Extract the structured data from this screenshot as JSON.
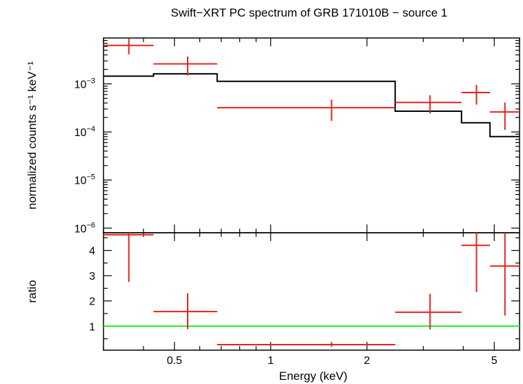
{
  "chart_data": {
    "title": "Swift−XRT PC spectrum of GRB 171010B − source 1",
    "xlabel": "Energy (keV)",
    "x_scale": "log",
    "xlim": [
      0.3,
      6.0
    ],
    "x_ticks": [
      {
        "value": 0.5,
        "label": "0.5"
      },
      {
        "value": 1,
        "label": "1"
      },
      {
        "value": 2,
        "label": "2"
      },
      {
        "value": 5,
        "label": "5"
      }
    ],
    "panels": [
      {
        "name": "spectrum",
        "type": "scatter",
        "ylabel": "normalized counts s⁻¹ keV⁻¹",
        "y_scale": "log",
        "ylim": [
          8e-07,
          0.009
        ],
        "y_ticks": [
          {
            "value": 0.001,
            "base": "10",
            "exp": "−3"
          },
          {
            "value": 0.0001,
            "base": "10",
            "exp": "−4"
          },
          {
            "value": 1e-05,
            "base": "10",
            "exp": "−5"
          },
          {
            "value": 1e-06,
            "base": "10",
            "exp": "−6"
          }
        ],
        "data": {
          "color": "#e8201c",
          "points": [
            {
              "x": 0.36,
              "xlo": 0.3,
              "xhi": 0.43,
              "y": 0.0063,
              "ylo": 0.0041,
              "yhi": 0.0087
            },
            {
              "x": 0.55,
              "xlo": 0.43,
              "xhi": 0.68,
              "y": 0.0026,
              "ylo": 0.0015,
              "yhi": 0.0037
            },
            {
              "x": 1.55,
              "xlo": 0.68,
              "xhi": 2.45,
              "y": 0.00032,
              "ylo": 0.00017,
              "yhi": 0.00047
            },
            {
              "x": 3.15,
              "xlo": 2.45,
              "xhi": 3.95,
              "y": 0.00041,
              "ylo": 0.00024,
              "yhi": 0.00058
            },
            {
              "x": 4.4,
              "xlo": 3.95,
              "xhi": 4.85,
              "y": 0.00066,
              "ylo": 0.00037,
              "yhi": 0.00095
            },
            {
              "x": 5.4,
              "xlo": 4.85,
              "xhi": 6.0,
              "y": 0.00026,
              "ylo": 0.00011,
              "yhi": 0.00041
            }
          ]
        },
        "model": {
          "color": "#000000",
          "steps": [
            {
              "xlo": 0.3,
              "xhi": 0.43,
              "y": 0.00145
            },
            {
              "xlo": 0.43,
              "xhi": 0.68,
              "y": 0.00162
            },
            {
              "xlo": 0.68,
              "xhi": 2.45,
              "y": 0.00113
            },
            {
              "xlo": 2.45,
              "xhi": 3.95,
              "y": 0.00027
            },
            {
              "xlo": 3.95,
              "xhi": 4.85,
              "y": 0.000155
            },
            {
              "xlo": 4.85,
              "xhi": 6.0,
              "y": 8e-05
            }
          ]
        }
      },
      {
        "name": "ratio",
        "type": "scatter",
        "ylabel": "ratio",
        "y_scale": "linear",
        "ylim": [
          0.05,
          4.7
        ],
        "y_ticks": [
          {
            "value": 1,
            "label": "1"
          },
          {
            "value": 2,
            "label": "2"
          },
          {
            "value": 3,
            "label": "3"
          },
          {
            "value": 4,
            "label": "4"
          }
        ],
        "data": {
          "color": "#e8201c",
          "points": [
            {
              "x": 0.36,
              "xlo": 0.3,
              "xhi": 0.43,
              "y": 4.62,
              "ylo": 2.75,
              "yhi": 4.7
            },
            {
              "x": 0.55,
              "xlo": 0.43,
              "xhi": 0.68,
              "y": 1.58,
              "ylo": 0.88,
              "yhi": 2.3
            },
            {
              "x": 1.55,
              "xlo": 0.68,
              "xhi": 2.45,
              "y": 0.27,
              "ylo": 0.18,
              "yhi": 0.37
            },
            {
              "x": 3.15,
              "xlo": 2.45,
              "xhi": 3.95,
              "y": 1.55,
              "ylo": 0.87,
              "yhi": 2.28
            },
            {
              "x": 4.4,
              "xlo": 3.95,
              "xhi": 4.85,
              "y": 4.2,
              "ylo": 2.35,
              "yhi": 4.7
            },
            {
              "x": 5.4,
              "xlo": 4.85,
              "xhi": 6.0,
              "y": 3.38,
              "ylo": 1.42,
              "yhi": 4.7
            }
          ]
        },
        "reference_line": {
          "y": 1,
          "color": "#1ee81e"
        }
      }
    ]
  }
}
